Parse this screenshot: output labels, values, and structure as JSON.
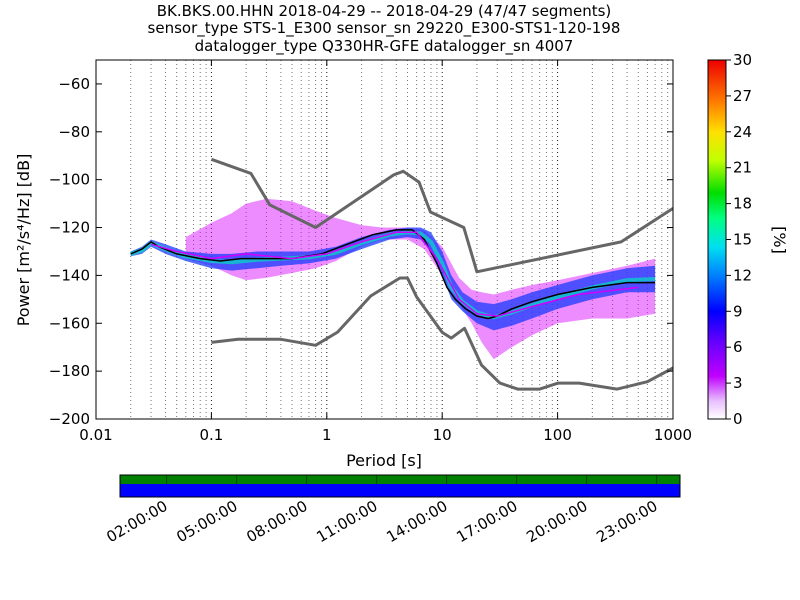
{
  "chart_data": {
    "type": "heatmap",
    "title": [
      "BK.BKS.00.HHN   2018-04-29 -- 2018-04-29  (47/47 segments)",
      "sensor_type STS-1_E300 sensor_sn 29220_E300-STS1-120-198",
      "datalogger_type Q330HR-GFE datalogger_sn 4007"
    ],
    "xlabel": "Period [s]",
    "ylabel": "Power [m²/s⁴/Hz] [dB]",
    "xscale": "log",
    "xlim": [
      0.01,
      1000
    ],
    "ylim": [
      -200,
      -50
    ],
    "x_ticks": [
      0.01,
      0.1,
      1,
      10,
      100,
      1000
    ],
    "x_tick_labels": [
      "0.01",
      "0.1",
      "1",
      "10",
      "100",
      "1000"
    ],
    "y_ticks": [
      -200,
      -180,
      -160,
      -140,
      -120,
      -100,
      -80,
      -60
    ],
    "y_tick_labels": [
      "−200",
      "−180",
      "−160",
      "−140",
      "−120",
      "−100",
      "−80",
      "−60"
    ],
    "grid": "dotted vertical",
    "colorbar": {
      "label": "[%]",
      "range": [
        0,
        30
      ],
      "ticks": [
        0,
        3,
        6,
        9,
        12,
        15,
        18,
        21,
        24,
        27,
        30
      ],
      "colormap": "pqlx"
    },
    "series": [
      {
        "name": "",
        "role": "high_noise_model",
        "color": "#666666",
        "x": [
          0.1,
          0.22,
          0.32,
          0.8,
          3.8,
          4.6,
          6.3,
          7.9,
          15.4,
          20,
          354.8,
          1000
        ],
        "y": [
          -91.5,
          -97.4,
          -110.5,
          -120,
          -98,
          -96.5,
          -101,
          -113.5,
          -120,
          -138.5,
          -126,
          -112
        ]
      },
      {
        "name": "",
        "role": "low_noise_model",
        "color": "#666666",
        "x": [
          0.1,
          0.17,
          0.4,
          0.8,
          1.24,
          2.4,
          4.3,
          5,
          6,
          10,
          12,
          15.6,
          21.9,
          31.6,
          45,
          70,
          101,
          154,
          328,
          600,
          1000
        ],
        "y": [
          -168,
          -166.7,
          -166.7,
          -169.2,
          -163.7,
          -148.6,
          -141.1,
          -141.1,
          -149,
          -163.8,
          -166.2,
          -162.1,
          -177.5,
          -185,
          -187.5,
          -187.5,
          -185,
          -185,
          -187.5,
          -184.4,
          -178.7
        ]
      },
      {
        "name": "",
        "role": "mode",
        "color": "#000000",
        "x": [
          0.02,
          0.025,
          0.03,
          0.035,
          0.05,
          0.08,
          0.12,
          0.18,
          0.3,
          0.5,
          0.9,
          1.5,
          2.5,
          4,
          5.5,
          7,
          9,
          11,
          13,
          16,
          20,
          25,
          30,
          40,
          60,
          100,
          200,
          400,
          700
        ],
        "y": [
          -131,
          -129,
          -126,
          -128,
          -131,
          -133,
          -134,
          -133,
          -133,
          -133,
          -131,
          -127,
          -123,
          -121,
          -121,
          -125,
          -135,
          -145,
          -150,
          -154,
          -157,
          -158,
          -157,
          -154,
          -151,
          -148,
          -145,
          -143,
          -143
        ]
      },
      {
        "name": "",
        "role": "mean",
        "color": "#d100ff",
        "x": [
          0.03,
          0.05,
          0.1,
          0.2,
          0.5,
          1,
          2,
          4,
          6,
          9,
          14,
          20,
          30,
          60,
          150,
          500
        ],
        "y": [
          -127,
          -130,
          -133,
          -131,
          -133,
          -131,
          -126,
          -122,
          -122,
          -133,
          -150,
          -156,
          -157,
          -153,
          -148,
          -145
        ]
      }
    ],
    "density_bands": [
      {
        "role": "core",
        "x": [
          0.02,
          0.025,
          0.03,
          0.04,
          0.06,
          0.1,
          0.15,
          0.25,
          0.4,
          0.7,
          1.2,
          2,
          3.5,
          5,
          6.5,
          8,
          10,
          12,
          15,
          20,
          28,
          40,
          60,
          100,
          200,
          400,
          700
        ],
        "upper": [
          -130,
          -128,
          -125,
          -127,
          -130,
          -131,
          -131,
          -130,
          -130,
          -130,
          -128,
          -124,
          -121,
          -120,
          -120,
          -122,
          -130,
          -140,
          -147,
          -151,
          -152,
          -150,
          -147,
          -144,
          -140,
          -137,
          -136
        ],
        "lower": [
          -132,
          -131,
          -128,
          -131,
          -134,
          -137,
          -138,
          -137,
          -136,
          -135,
          -133,
          -129,
          -125,
          -124,
          -125,
          -130,
          -140,
          -150,
          -155,
          -160,
          -163,
          -161,
          -158,
          -154,
          -150,
          -147,
          -147
        ]
      },
      {
        "role": "spread",
        "x": [
          0.06,
          0.1,
          0.15,
          0.2,
          0.3,
          0.5,
          0.8,
          1.2,
          2,
          3,
          5,
          7,
          10,
          14,
          18,
          22,
          28,
          40,
          60,
          100,
          200,
          400,
          700
        ],
        "upper": [
          -124,
          -118,
          -114,
          -110,
          -108,
          -109,
          -113,
          -116,
          -119,
          -120,
          -120,
          -121,
          -128,
          -141,
          -146,
          -147,
          -148,
          -146,
          -144,
          -142,
          -139,
          -136,
          -133
        ],
        "lower": [
          -133,
          -136,
          -140,
          -142,
          -141,
          -139,
          -137,
          -134,
          -128,
          -125,
          -125,
          -129,
          -140,
          -152,
          -160,
          -168,
          -175,
          -170,
          -165,
          -160,
          -158,
          -158,
          -156
        ]
      }
    ]
  },
  "time_strip": {
    "rows": [
      {
        "name": "data-availability",
        "color": "#008000"
      },
      {
        "name": "psd-segments",
        "color": "#0000ff"
      }
    ],
    "tick_labels": [
      "02:00:00",
      "05:00:00",
      "08:00:00",
      "11:00:00",
      "14:00:00",
      "17:00:00",
      "20:00:00",
      "23:00:00"
    ],
    "tick_hours": [
      2,
      5,
      8,
      11,
      14,
      17,
      20,
      23
    ]
  }
}
